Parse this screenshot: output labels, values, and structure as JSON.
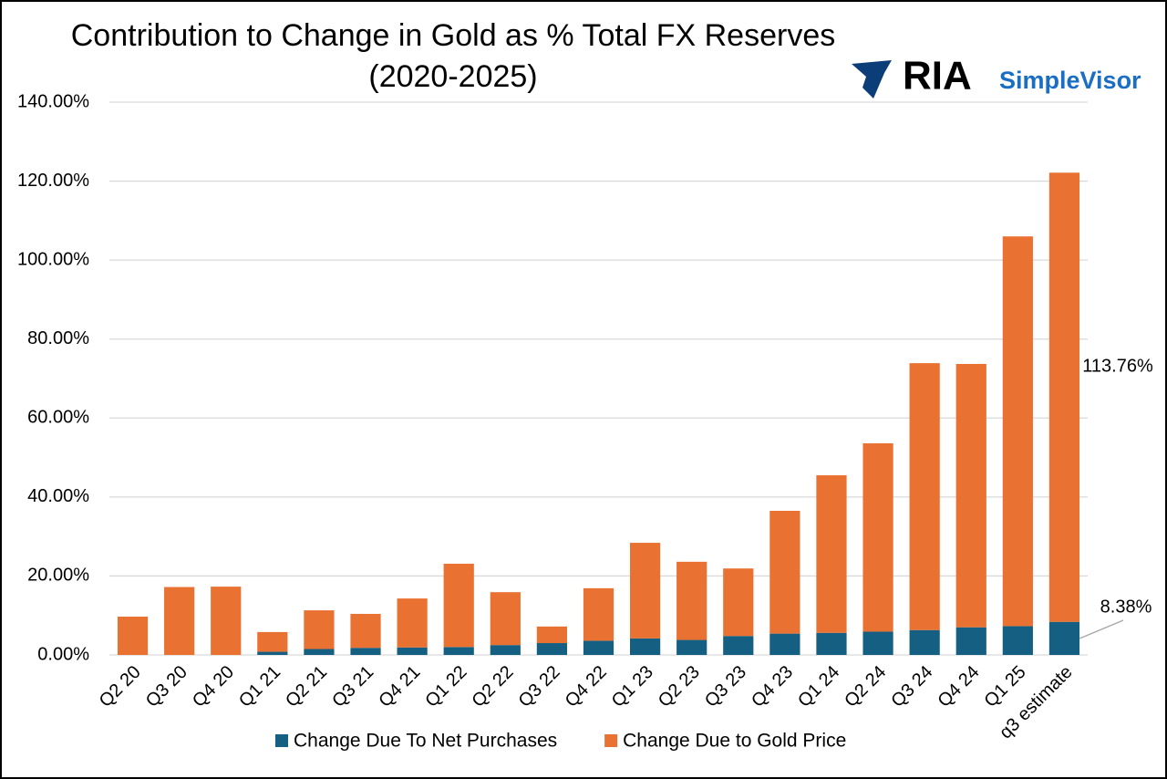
{
  "chart_data": {
    "type": "stacked-bar",
    "title": "Contribution to Change in Gold as % Total FX Reserves",
    "subtitle": "(2020-2025)",
    "categories": [
      "Q2 20",
      "Q3 20",
      "Q4 20",
      "Q1 21",
      "Q2 21",
      "Q3 21",
      "Q4 21",
      "Q1 22",
      "Q2 22",
      "Q3 22",
      "Q4 22",
      "Q1 23",
      "Q2 23",
      "Q3 23",
      "Q4 23",
      "Q1 24",
      "Q2 24",
      "Q3 24",
      "Q4 24",
      "Q1 25",
      "q3 estimate"
    ],
    "series": [
      {
        "name": "Change Due To Net Purchases",
        "color": "#156082",
        "values": [
          0,
          0,
          0,
          0.8,
          1.5,
          1.8,
          1.9,
          2.0,
          2.5,
          3.0,
          3.6,
          4.2,
          3.8,
          4.8,
          5.4,
          5.6,
          5.9,
          6.3,
          7.0,
          7.3,
          8.38
        ],
        "value_labels": [
          null,
          null,
          null,
          null,
          null,
          null,
          null,
          null,
          null,
          null,
          null,
          null,
          null,
          null,
          null,
          null,
          null,
          null,
          null,
          null,
          "8.38%"
        ]
      },
      {
        "name": "Change Due to Gold Price",
        "color": "#e97132",
        "values": [
          9.7,
          17.2,
          17.3,
          5.0,
          9.8,
          8.6,
          12.4,
          21.1,
          13.4,
          4.2,
          13.3,
          24.2,
          19.8,
          17.1,
          31.1,
          39.9,
          47.7,
          67.6,
          66.7,
          98.7,
          113.76
        ],
        "value_labels": [
          null,
          null,
          null,
          null,
          null,
          null,
          null,
          null,
          null,
          null,
          null,
          null,
          null,
          null,
          null,
          null,
          null,
          null,
          null,
          null,
          "113.76%"
        ]
      }
    ],
    "ylim": [
      0,
      140
    ],
    "yticks": [
      {
        "value": 0,
        "label": "0.00%"
      },
      {
        "value": 20,
        "label": "20.00%"
      },
      {
        "value": 40,
        "label": "40.00%"
      },
      {
        "value": 60,
        "label": "60.00%"
      },
      {
        "value": 80,
        "label": "80.00%"
      },
      {
        "value": 100,
        "label": "100.00%"
      },
      {
        "value": 120,
        "label": "120.00%"
      },
      {
        "value": 140,
        "label": "140.00%"
      }
    ],
    "grid": true,
    "legend": "bottom"
  },
  "logo": {
    "brand": "RIA",
    "product": "SimpleVisor"
  }
}
